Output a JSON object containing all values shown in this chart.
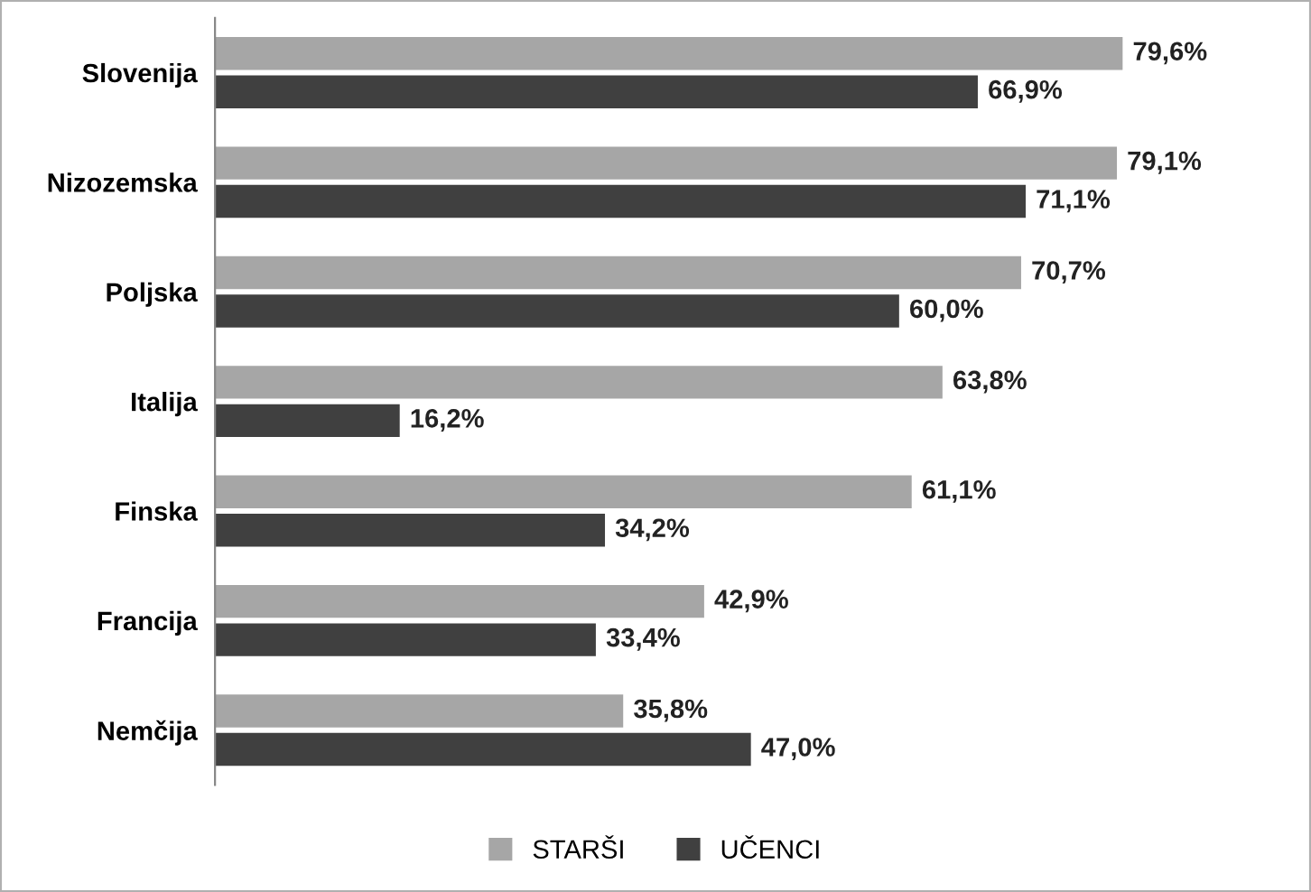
{
  "chart_data": {
    "type": "bar",
    "orientation": "horizontal",
    "categories": [
      "Slovenija",
      "Nizozemska",
      "Poljska",
      "Italija",
      "Finska",
      "Francija",
      "Nemčija"
    ],
    "series": [
      {
        "name": "STARŠI",
        "color": "#a6a6a6",
        "values": [
          79.6,
          79.1,
          70.7,
          63.8,
          61.1,
          42.9,
          35.8
        ],
        "value_labels": [
          "79,6%",
          "79,1%",
          "70,7%",
          "63,8%",
          "61,1%",
          "42,9%",
          "35,8%"
        ]
      },
      {
        "name": "UČENCI",
        "color": "#404040",
        "values": [
          66.9,
          71.1,
          60.0,
          16.2,
          34.2,
          33.4,
          47.0
        ],
        "value_labels": [
          "66,9%",
          "71,1%",
          "60,0%",
          "16,2%",
          "34,2%",
          "33,4%",
          "47,0%"
        ]
      }
    ],
    "tick_labels": "y",
    "grid": false,
    "legend": "bottom"
  }
}
